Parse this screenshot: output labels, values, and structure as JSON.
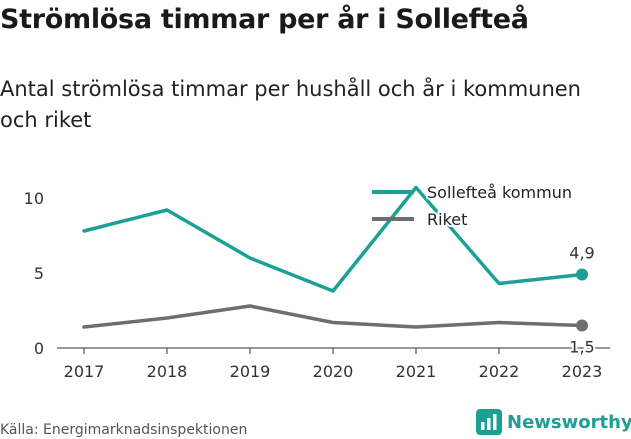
{
  "title": "Strömlösa timmar per år i Sollefteå",
  "subtitle": "Antal strömlösa timmar per hushåll och år i kommunen och riket",
  "source": "Källa: Energimarknadsinspektionen",
  "logo": {
    "text": "Newsworthy",
    "icon": "bar-chart-icon"
  },
  "colors": {
    "kommun": "#1aa193",
    "riket": "#6e6e72"
  },
  "chart_data": {
    "type": "line",
    "x": [
      "2017",
      "2018",
      "2019",
      "2020",
      "2021",
      "2022",
      "2023"
    ],
    "yticks": [
      0,
      5,
      10
    ],
    "ylim": [
      0,
      11
    ],
    "grid": false,
    "legend": "top-right",
    "series": [
      {
        "name": "Sollefteå kommun",
        "values": [
          7.8,
          9.2,
          6.0,
          3.8,
          10.7,
          4.3,
          4.9
        ],
        "end_label": "4,9"
      },
      {
        "name": "Riket",
        "values": [
          1.4,
          2.0,
          2.8,
          1.7,
          1.4,
          1.7,
          1.5
        ],
        "end_label": "1,5"
      }
    ]
  }
}
